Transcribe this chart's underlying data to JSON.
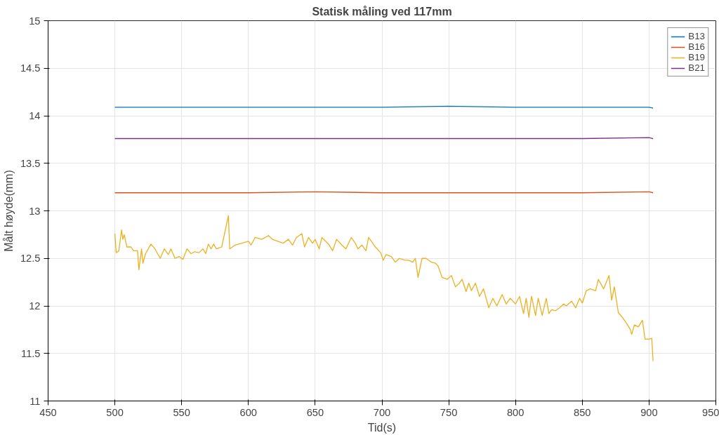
{
  "chart_data": {
    "type": "line",
    "title": "Statisk måling ved 117mm",
    "xlabel": "Tid(s)",
    "ylabel": "Målt høyde(mm)",
    "xlim": [
      450,
      950
    ],
    "xticks": [
      450,
      500,
      550,
      600,
      650,
      700,
      750,
      800,
      850,
      900,
      950
    ],
    "ylim": [
      11,
      15
    ],
    "yticks": [
      11,
      11.5,
      12,
      12.5,
      13,
      13.5,
      14,
      14.5,
      15
    ],
    "grid": true,
    "legend": "top right",
    "series": [
      {
        "name": "B13",
        "color": "#0072bd",
        "x": [
          500,
          550,
          600,
          650,
          700,
          750,
          800,
          850,
          900,
          903
        ],
        "values": [
          14.09,
          14.09,
          14.09,
          14.09,
          14.09,
          14.1,
          14.09,
          14.09,
          14.09,
          14.08
        ]
      },
      {
        "name": "B16",
        "color": "#d95319",
        "x": [
          500,
          550,
          600,
          650,
          700,
          750,
          800,
          850,
          900,
          903
        ],
        "values": [
          13.19,
          13.19,
          13.19,
          13.2,
          13.19,
          13.19,
          13.19,
          13.19,
          13.2,
          13.19
        ]
      },
      {
        "name": "B19",
        "color": "#edb120",
        "x": [
          500,
          501,
          503,
          505,
          506,
          507,
          509,
          512,
          514,
          517,
          518,
          520,
          521,
          523,
          527,
          530,
          534,
          537,
          540,
          542,
          545,
          548,
          551,
          554,
          557,
          560,
          563,
          566,
          568,
          570,
          572,
          574,
          576,
          580,
          585,
          586,
          590,
          595,
          600,
          602,
          605,
          610,
          615,
          618,
          622,
          626,
          630,
          633,
          636,
          640,
          642,
          645,
          648,
          650,
          653,
          655,
          660,
          663,
          666,
          670,
          673,
          677,
          680,
          682,
          685,
          688,
          690,
          695,
          699,
          701,
          703,
          707,
          710,
          713,
          717,
          720,
          723,
          725,
          727,
          730,
          733,
          737,
          740,
          742,
          745,
          749,
          752,
          755,
          758,
          760,
          763,
          765,
          767,
          770,
          773,
          776,
          780,
          783,
          786,
          790,
          793,
          796,
          800,
          803,
          806,
          808,
          810,
          812,
          815,
          817,
          820,
          823,
          825,
          827,
          830,
          833,
          836,
          838,
          842,
          845,
          848,
          850,
          853,
          856,
          860,
          862,
          866,
          870,
          872,
          874,
          877,
          880,
          883,
          886,
          887,
          889,
          892,
          895,
          897,
          900,
          902,
          903
        ],
        "values": [
          12.76,
          12.56,
          12.58,
          12.8,
          12.7,
          12.75,
          12.62,
          12.62,
          12.58,
          12.58,
          12.38,
          12.6,
          12.45,
          12.55,
          12.65,
          12.6,
          12.5,
          12.6,
          12.54,
          12.6,
          12.5,
          12.52,
          12.49,
          12.6,
          12.55,
          12.57,
          12.56,
          12.6,
          12.55,
          12.65,
          12.6,
          12.65,
          12.6,
          12.62,
          12.95,
          12.6,
          12.64,
          12.66,
          12.68,
          12.64,
          12.72,
          12.7,
          12.74,
          12.7,
          12.68,
          12.66,
          12.7,
          12.64,
          12.72,
          12.76,
          12.62,
          12.72,
          12.66,
          12.7,
          12.6,
          12.72,
          12.65,
          12.58,
          12.7,
          12.64,
          12.6,
          12.72,
          12.66,
          12.6,
          12.64,
          12.58,
          12.72,
          12.62,
          12.56,
          12.48,
          12.54,
          12.52,
          12.46,
          12.5,
          12.48,
          12.48,
          12.46,
          12.5,
          12.3,
          12.5,
          12.5,
          12.46,
          12.45,
          12.42,
          12.3,
          12.28,
          12.32,
          12.2,
          12.24,
          12.28,
          12.15,
          12.24,
          12.16,
          12.24,
          12.1,
          12.18,
          11.98,
          12.08,
          12.0,
          12.12,
          12.02,
          12.08,
          12.02,
          12.1,
          11.92,
          12.08,
          11.88,
          12.1,
          11.9,
          12.08,
          11.9,
          12.08,
          11.92,
          11.96,
          11.95,
          11.98,
          12.02,
          12.0,
          12.05,
          11.98,
          12.08,
          12.03,
          12.16,
          12.18,
          12.16,
          12.28,
          12.18,
          12.32,
          12.06,
          12.2,
          11.93,
          11.88,
          11.82,
          11.75,
          11.7,
          11.8,
          11.78,
          11.85,
          11.65,
          11.65,
          11.66,
          11.42
        ]
      },
      {
        "name": "B21",
        "color": "#7e2f8e",
        "x": [
          500,
          550,
          600,
          650,
          700,
          750,
          800,
          850,
          900,
          903
        ],
        "values": [
          13.76,
          13.76,
          13.76,
          13.76,
          13.76,
          13.76,
          13.76,
          13.76,
          13.77,
          13.76
        ]
      }
    ]
  }
}
